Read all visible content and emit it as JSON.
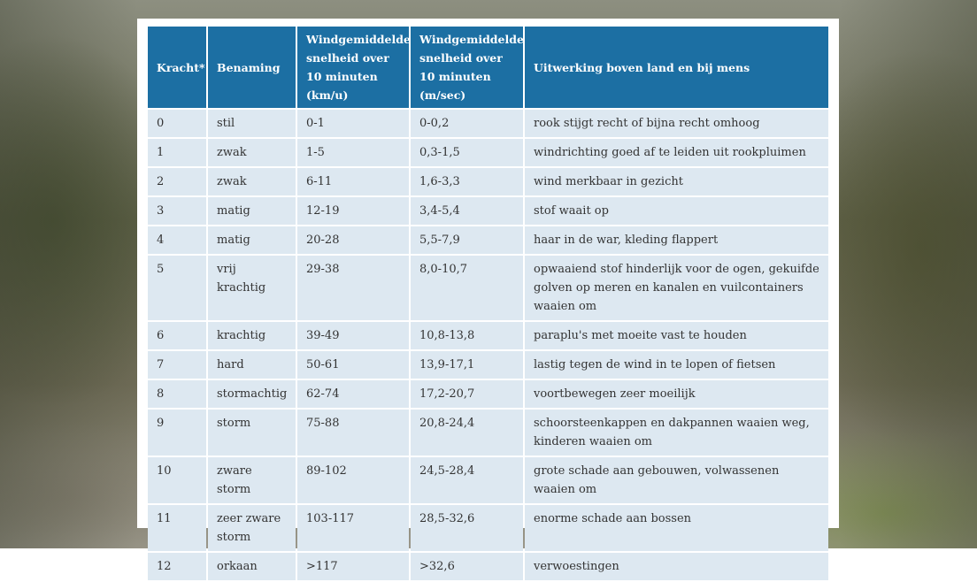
{
  "chart_data": {
    "type": "table",
    "columns": [
      "Kracht*",
      "Benaming",
      "Windgemiddelde snelheid over 10 minuten (km/u)",
      "Windgemiddelde snelheid over 10 minuten (m/sec)",
      "Uitwerking boven land en bij mens"
    ],
    "header_lines": [
      [
        "Kracht*"
      ],
      [
        "Benaming"
      ],
      [
        "Windgemiddelde",
        "snelheid over",
        "10 minuten",
        "(km/u)"
      ],
      [
        "Windgemiddelde",
        "snelheid over",
        "10 minuten",
        "(m/sec)"
      ],
      [
        "Uitwerking boven land en bij mens"
      ]
    ],
    "rows": [
      [
        "0",
        "stil",
        "0-1",
        "0-0,2",
        "rook stijgt recht of bijna recht omhoog"
      ],
      [
        "1",
        "zwak",
        "1-5",
        "0,3-1,5",
        "windrichting goed af te leiden uit rookpluimen"
      ],
      [
        "2",
        "zwak",
        "6-11",
        "1,6-3,3",
        "wind merkbaar in gezicht"
      ],
      [
        "3",
        "matig",
        "12-19",
        "3,4-5,4",
        "stof waait op"
      ],
      [
        "4",
        "matig",
        "20-28",
        "5,5-7,9",
        "haar in de war, kleding flappert"
      ],
      [
        "5",
        "vrij krachtig",
        "29-38",
        "8,0-10,7",
        "opwaaiend stof hinderlijk voor de ogen, gekuifde golven op meren en kanalen en vuilcontainers waaien om"
      ],
      [
        "6",
        "krachtig",
        "39-49",
        "10,8-13,8",
        "paraplu's met moeite vast te houden"
      ],
      [
        "7",
        "hard",
        "50-61",
        "13,9-17,1",
        "lastig tegen de wind in te lopen of fietsen"
      ],
      [
        "8",
        "stormachtig",
        "62-74",
        "17,2-20,7",
        "voortbewegen zeer moeilijk"
      ],
      [
        "9",
        "storm",
        "75-88",
        "20,8-24,4",
        "schoorsteenkappen en dakpannen waaien weg, kinderen waaien om"
      ],
      [
        "10",
        "zware storm",
        "89-102",
        "24,5-28,4",
        "grote schade aan gebouwen, volwassenen waaien om"
      ],
      [
        "11",
        "zeer zware storm",
        "103-117",
        "28,5-32,6",
        "enorme schade aan bossen"
      ],
      [
        "12",
        "orkaan",
        ">117",
        ">32,6",
        "verwoestingen"
      ]
    ]
  },
  "colors": {
    "header_bg": "#1c6fa3",
    "header_text": "#ffffff",
    "cell_bg": "#dde8f1",
    "cell_text": "#333333"
  }
}
